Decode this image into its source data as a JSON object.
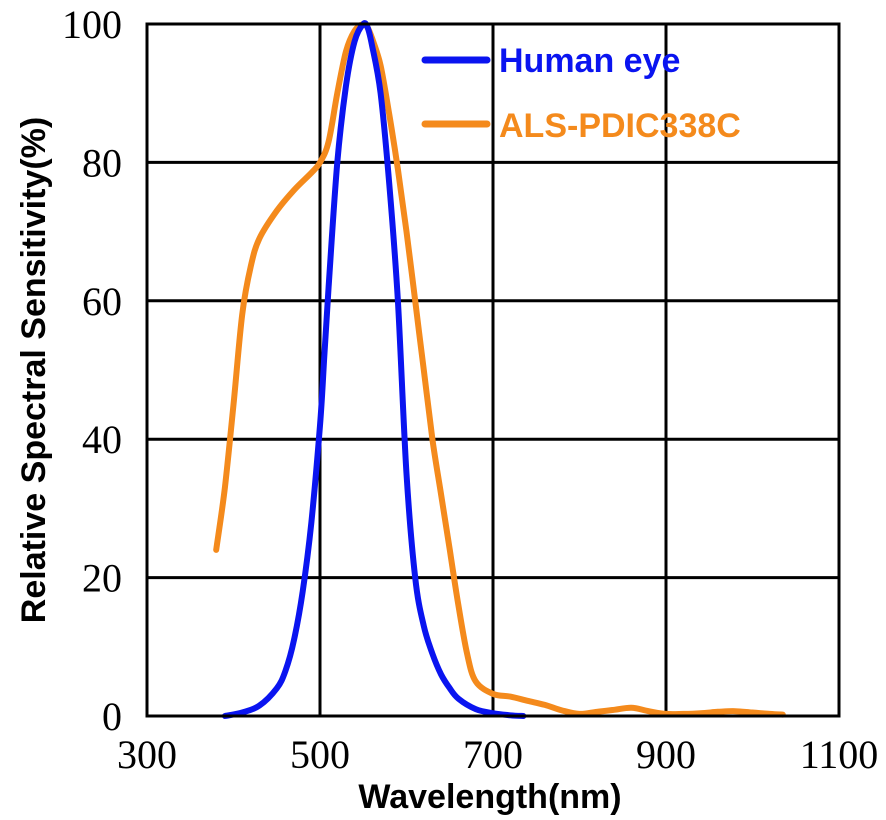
{
  "chart_data": {
    "type": "line",
    "title": "",
    "xlabel": "Wavelength(nm)",
    "ylabel": "Relative Spectral Sensitivity(%)",
    "xlim": [
      300,
      1100
    ],
    "ylim": [
      0,
      100
    ],
    "x_ticks": [
      "300",
      "500",
      "700",
      "900",
      "1100"
    ],
    "y_ticks": [
      "0",
      "20",
      "40",
      "60",
      "80",
      "100"
    ],
    "grid": true,
    "legend_position": "top-right",
    "series": [
      {
        "name": "Human eye",
        "color": "#0a14f0",
        "x": [
          390,
          410,
          430,
          450,
          460,
          470,
          480,
          490,
          500,
          505,
          510,
          520,
          530,
          540,
          550,
          555,
          560,
          570,
          580,
          590,
          600,
          610,
          620,
          630,
          640,
          650,
          660,
          680,
          700,
          720,
          735
        ],
        "y": [
          0,
          0.5,
          1.5,
          4,
          6.5,
          11,
          18,
          28,
          42,
          52,
          62,
          80,
          91,
          97.5,
          100,
          99.5,
          97,
          90,
          77,
          60,
          35,
          20,
          13,
          9,
          6,
          4,
          2.5,
          1,
          0.4,
          0.1,
          0
        ]
      },
      {
        "name": "ALS-PDIC338C",
        "color": "#f48a1c",
        "x": [
          380,
          390,
          400,
          410,
          420,
          430,
          450,
          470,
          490,
          500,
          510,
          520,
          530,
          540,
          550,
          555,
          560,
          570,
          580,
          590,
          600,
          610,
          620,
          630,
          640,
          650,
          660,
          670,
          680,
          700,
          720,
          740,
          760,
          780,
          800,
          820,
          840,
          860,
          880,
          900,
          920,
          940,
          960,
          980,
          1000,
          1020,
          1035
        ],
        "y": [
          24,
          33,
          45,
          58,
          65,
          69,
          73,
          76,
          78.5,
          80,
          83,
          90,
          96,
          99,
          100,
          99.5,
          98,
          94,
          87,
          79,
          70,
          60,
          50,
          40,
          32,
          24,
          16,
          9,
          5,
          3.2,
          2.8,
          2.2,
          1.6,
          0.8,
          0.3,
          0.6,
          0.9,
          1.2,
          0.7,
          0.3,
          0.3,
          0.4,
          0.6,
          0.7,
          0.5,
          0.3,
          0.2
        ]
      }
    ]
  }
}
